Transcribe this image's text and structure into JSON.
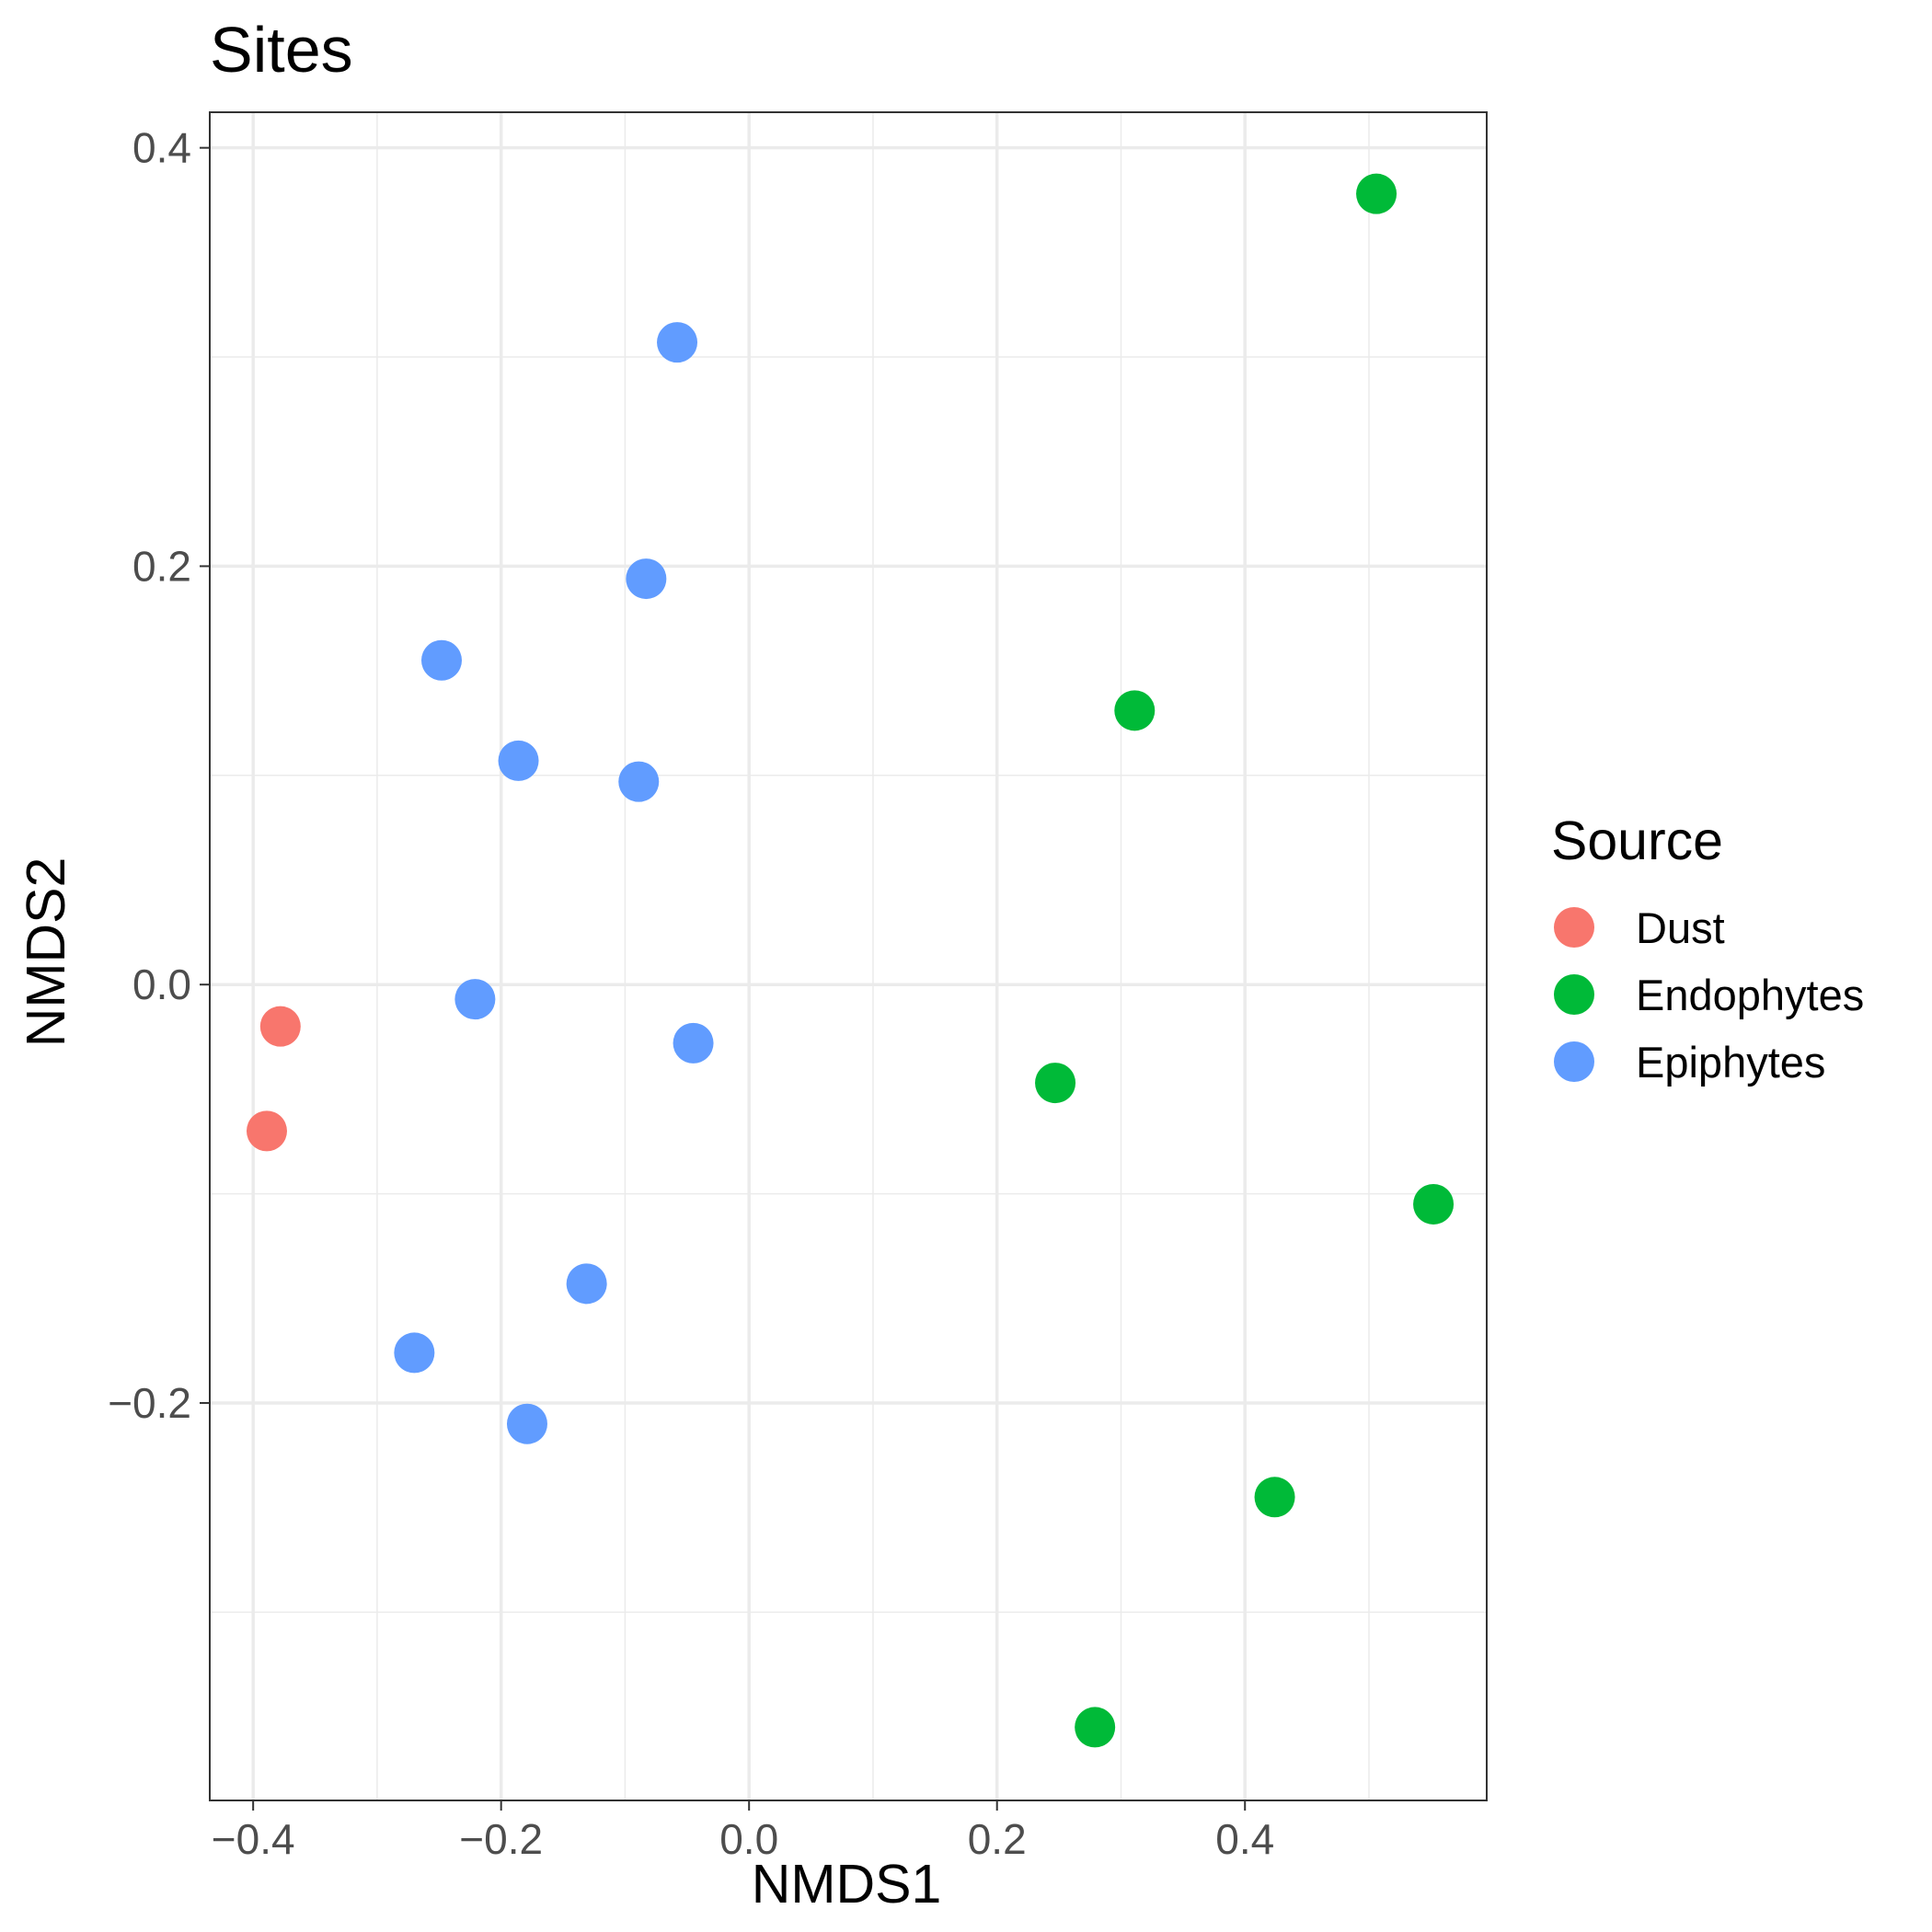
{
  "chart_data": {
    "type": "scatter",
    "title": "Sites",
    "xlabel": "NMDS1",
    "ylabel": "NMDS2",
    "xlim": [
      -0.435,
      0.595
    ],
    "ylim": [
      -0.39,
      0.417
    ],
    "x_ticks": [
      -0.4,
      -0.2,
      0.0,
      0.2,
      0.4
    ],
    "y_ticks": [
      -0.2,
      0.0,
      0.2,
      0.4
    ],
    "x_tick_labels": [
      "−0.4",
      "−0.2",
      "0.0",
      "0.2",
      "0.4"
    ],
    "y_tick_labels": [
      "−0.2",
      "0.0",
      "0.2",
      "0.4"
    ],
    "grid": true,
    "legend": {
      "title": "Source",
      "position": "right"
    },
    "series": [
      {
        "name": "Dust",
        "color": "#F8766D",
        "points": [
          {
            "x": -0.378,
            "y": -0.02
          },
          {
            "x": -0.389,
            "y": -0.07
          }
        ]
      },
      {
        "name": "Endophytes",
        "color": "#00BA38",
        "points": [
          {
            "x": 0.506,
            "y": 0.378
          },
          {
            "x": 0.311,
            "y": 0.131
          },
          {
            "x": 0.247,
            "y": -0.047
          },
          {
            "x": 0.552,
            "y": -0.105
          },
          {
            "x": 0.424,
            "y": -0.245
          },
          {
            "x": 0.279,
            "y": -0.355
          }
        ]
      },
      {
        "name": "Epiphytes",
        "color": "#619CFF",
        "points": [
          {
            "x": -0.058,
            "y": 0.307
          },
          {
            "x": -0.083,
            "y": 0.194
          },
          {
            "x": -0.248,
            "y": 0.155
          },
          {
            "x": -0.186,
            "y": 0.107
          },
          {
            "x": -0.089,
            "y": 0.097
          },
          {
            "x": -0.221,
            "y": -0.007
          },
          {
            "x": -0.045,
            "y": -0.028
          },
          {
            "x": -0.131,
            "y": -0.143
          },
          {
            "x": -0.27,
            "y": -0.176
          },
          {
            "x": -0.179,
            "y": -0.21
          }
        ]
      }
    ]
  }
}
